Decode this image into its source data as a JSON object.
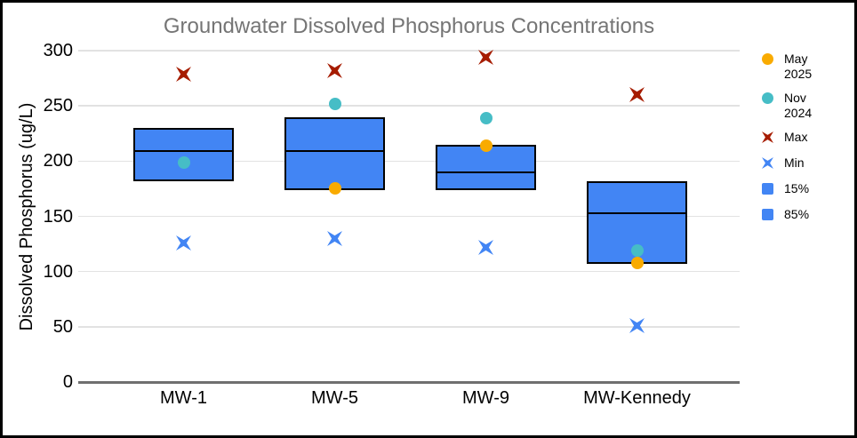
{
  "title": "Groundwater Dissolved Phosphorus Concentrations",
  "y_axis": {
    "title": "Dissolved Phosphorus (ug/L)",
    "ticks": [
      0,
      50,
      100,
      150,
      200,
      250,
      300
    ],
    "min": 0,
    "max": 300
  },
  "legend": {
    "items": [
      {
        "id": "may-2025",
        "lines": [
          "May",
          "2025"
        ],
        "shape": "circle",
        "color": "#F9AB00"
      },
      {
        "id": "nov-2024",
        "lines": [
          "Nov",
          "2024"
        ],
        "shape": "circle",
        "color": "#46BDC6"
      },
      {
        "id": "max",
        "lines": [
          "Max"
        ],
        "shape": "x",
        "color": "#A61C00"
      },
      {
        "id": "min",
        "lines": [
          "Min"
        ],
        "shape": "x",
        "color": "#4285F4"
      },
      {
        "id": "p15",
        "lines": [
          "15%"
        ],
        "shape": "square",
        "color": "#4285F4"
      },
      {
        "id": "p85",
        "lines": [
          "85%"
        ],
        "shape": "square",
        "color": "#4285F4"
      }
    ]
  },
  "chart_data": {
    "type": "box",
    "title": "Groundwater Dissolved Phosphorus Concentrations",
    "xlabel": "",
    "ylabel": "Dissolved Phosphorus (ug/L)",
    "ylim": [
      0,
      300
    ],
    "yticks": [
      0,
      50,
      100,
      150,
      200,
      250,
      300
    ],
    "grid": true,
    "legend_position": "right",
    "categories": [
      "MW-1",
      "MW-5",
      "MW-9",
      "MW-Kennedy"
    ],
    "series": [
      {
        "name": "May 2025",
        "type": "point",
        "shape": "circle",
        "color": "#F9AB00",
        "values": [
          null,
          175,
          214,
          108
        ]
      },
      {
        "name": "Nov 2024",
        "type": "point",
        "shape": "circle",
        "color": "#46BDC6",
        "values": [
          199,
          252,
          239,
          119
        ]
      },
      {
        "name": "Max",
        "type": "point",
        "shape": "x",
        "color": "#A61C00",
        "values": [
          279,
          282,
          294,
          260
        ]
      },
      {
        "name": "Min",
        "type": "point",
        "shape": "x",
        "color": "#4285F4",
        "values": [
          126,
          130,
          122,
          51
        ]
      },
      {
        "name": "15%",
        "type": "box-bottom",
        "color": "#4285F4",
        "values": [
          182,
          174,
          174,
          107
        ]
      },
      {
        "name": "85%",
        "type": "box-top",
        "color": "#4285F4",
        "values": [
          230,
          240,
          215,
          182
        ]
      },
      {
        "name": "box-divider",
        "type": "box-divider",
        "color": "#000000",
        "values": [
          209,
          209,
          190,
          153
        ]
      }
    ]
  },
  "colors": {
    "box_fill": "#4285F4",
    "box_border": "#000000",
    "gridline": "#E2E2E2",
    "axis_line": "#6F6F6F",
    "title_text": "#757575",
    "text": "#000000",
    "frame_border": "#000000",
    "background": "#FFFFFF"
  }
}
